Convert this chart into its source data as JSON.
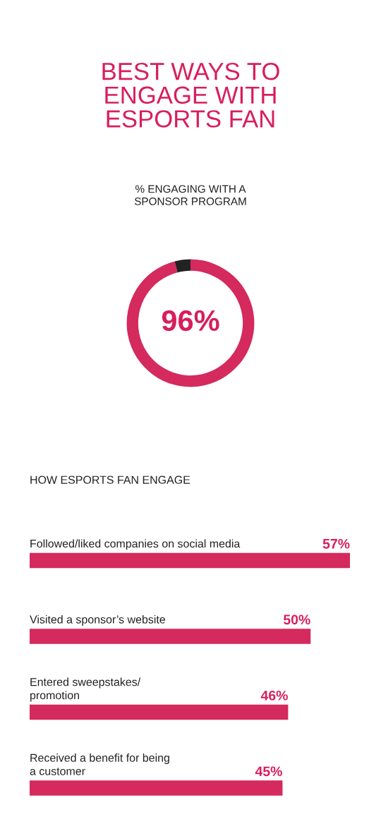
{
  "chart_data": [
    {
      "type": "donut",
      "title": "BEST WAYS TO\nENGAGE WITH\nESPORTS FAN",
      "subtitle": "% ENGAGING WITH A\nSPONSOR PROGRAM",
      "categories": [
        null,
        null
      ],
      "values": [
        96,
        4
      ],
      "colors": [
        "#d42a5e",
        "#222222"
      ],
      "value_labels": [
        "96%",
        null
      ],
      "legend": false
    },
    {
      "type": "bar",
      "orientation": "horizontal",
      "title": "HOW ESPORTS FAN ENGAGE",
      "categories": [
        "Followed/liked companies on social media",
        "Visited a sponsor’s website",
        "Entered sweepstakes/\npromotion",
        "Received a benefit for being\na customer"
      ],
      "values": [
        57,
        50,
        46,
        45
      ],
      "color": "#d42a5e",
      "value_labels": [
        "57%",
        "50%",
        "46%",
        "45%"
      ],
      "legend": false
    }
  ]
}
